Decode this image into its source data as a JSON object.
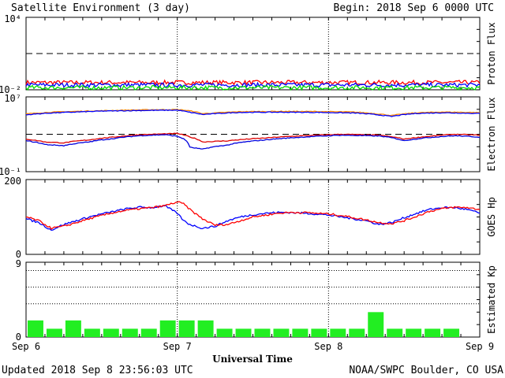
{
  "header": {
    "title": "Satellite Environment (3 day)",
    "begin": "Begin:  2018 Sep 6 0000 UTC"
  },
  "footer": {
    "updated": "Updated 2018 Sep  8 23:56:03 UTC",
    "credit": "NOAA/SWPC Boulder, CO USA"
  },
  "chart_data": [
    {
      "type": "line",
      "ylabel": "Proton Flux",
      "yscale": "log",
      "ylim": [
        0.01,
        10000
      ],
      "y_tick_labels": [
        "10⁴",
        "10⁻²"
      ],
      "threshold": 10,
      "x_range_hours": [
        0,
        72
      ],
      "series": [
        {
          "color": "#ff0000",
          "level": 0.04
        },
        {
          "color": "#0000ff",
          "level": 0.025
        },
        {
          "color": "#00dd00",
          "level": 0.015
        }
      ]
    },
    {
      "type": "line",
      "ylabel": "Electron Flux",
      "yscale": "log",
      "ylim": [
        0.1,
        10000000
      ],
      "y_tick_labels": [
        "10⁷",
        "10⁻¹"
      ],
      "threshold": 1000,
      "series": [
        {
          "color": "#ff8800",
          "x": [
            0,
            4,
            8,
            12,
            16,
            20,
            24,
            26,
            28,
            30,
            34,
            40,
            46,
            52,
            58,
            62,
            66,
            72
          ],
          "y": [
            150000,
            230000,
            280000,
            330000,
            380000,
            420000,
            440000,
            320000,
            160000,
            190000,
            260000,
            280000,
            270000,
            240000,
            100000,
            200000,
            240000,
            210000
          ]
        },
        {
          "color": "#0000ff",
          "x": [
            0,
            4,
            8,
            12,
            16,
            20,
            24,
            26,
            28,
            30,
            34,
            40,
            46,
            52,
            58,
            62,
            66,
            72
          ],
          "y": [
            120000,
            190000,
            240000,
            300000,
            330000,
            360000,
            380000,
            220000,
            130000,
            160000,
            220000,
            230000,
            220000,
            190000,
            80000,
            170000,
            200000,
            170000
          ]
        },
        {
          "color": "#dd0000",
          "x": [
            0,
            3,
            6,
            10,
            14,
            18,
            22,
            24,
            26,
            28,
            32,
            38,
            44,
            50,
            56,
            60,
            64,
            68,
            72
          ],
          "y": [
            300,
            150,
            120,
            250,
            500,
            900,
            1100,
            1200,
            500,
            150,
            200,
            400,
            700,
            1000,
            800,
            300,
            600,
            1000,
            800
          ]
        },
        {
          "color": "#0000dd",
          "x": [
            0,
            3,
            6,
            10,
            14,
            18,
            22,
            24,
            26,
            28,
            32,
            38,
            44,
            50,
            56,
            60,
            64,
            68,
            72
          ],
          "y": [
            200,
            80,
            60,
            150,
            350,
            700,
            900,
            600,
            40,
            25,
            70,
            250,
            500,
            800,
            650,
            200,
            450,
            700,
            500
          ]
        }
      ]
    },
    {
      "type": "line",
      "ylabel": "GOES Hp",
      "ylim": [
        0,
        200
      ],
      "y_tick_labels": [
        "200",
        "0"
      ],
      "series": [
        {
          "color": "#0000ff",
          "x": [
            0,
            2,
            4,
            6,
            8,
            10,
            12,
            14,
            16,
            18,
            20,
            22,
            23,
            24,
            25,
            26,
            28,
            30,
            32,
            34,
            36,
            38,
            40,
            42,
            44,
            46,
            48,
            50,
            52,
            54,
            56,
            58,
            60,
            62,
            64,
            66,
            68,
            70,
            72
          ],
          "y": [
            95,
            85,
            65,
            80,
            90,
            100,
            108,
            115,
            122,
            126,
            125,
            130,
            120,
            110,
            90,
            80,
            70,
            75,
            90,
            100,
            106,
            110,
            112,
            112,
            110,
            108,
            105,
            100,
            95,
            90,
            80,
            85,
            98,
            110,
            120,
            125,
            125,
            120,
            110
          ]
        },
        {
          "color": "#ff0000",
          "x": [
            0,
            2,
            4,
            6,
            8,
            10,
            12,
            14,
            16,
            18,
            20,
            22,
            23,
            24,
            25,
            26,
            28,
            30,
            32,
            34,
            36,
            38,
            40,
            42,
            44,
            46,
            48,
            50,
            52,
            54,
            56,
            58,
            60,
            62,
            64,
            66,
            68,
            70,
            72
          ],
          "y": [
            100,
            90,
            70,
            75,
            85,
            95,
            104,
            112,
            118,
            122,
            125,
            130,
            135,
            140,
            135,
            120,
            95,
            78,
            80,
            90,
            100,
            105,
            110,
            112,
            112,
            110,
            108,
            104,
            98,
            92,
            85,
            82,
            90,
            102,
            115,
            122,
            126,
            125,
            120
          ]
        }
      ]
    },
    {
      "type": "bar",
      "ylabel": "Estimated Kp",
      "ylim": [
        0,
        9
      ],
      "y_tick_labels": [
        "9",
        "0"
      ],
      "bar_color": "#22ee22",
      "values": [
        2,
        1,
        2,
        1,
        1,
        1,
        1,
        2,
        2,
        2,
        1,
        1,
        1,
        1,
        1,
        1,
        1,
        1,
        3,
        1,
        1,
        1,
        1,
        0
      ],
      "gridlines": [
        4,
        6,
        8
      ]
    }
  ],
  "x_axis": {
    "labels": [
      "Sep 6",
      "Sep 7",
      "Sep 8",
      "Sep 9"
    ],
    "title": "Universal Time"
  }
}
